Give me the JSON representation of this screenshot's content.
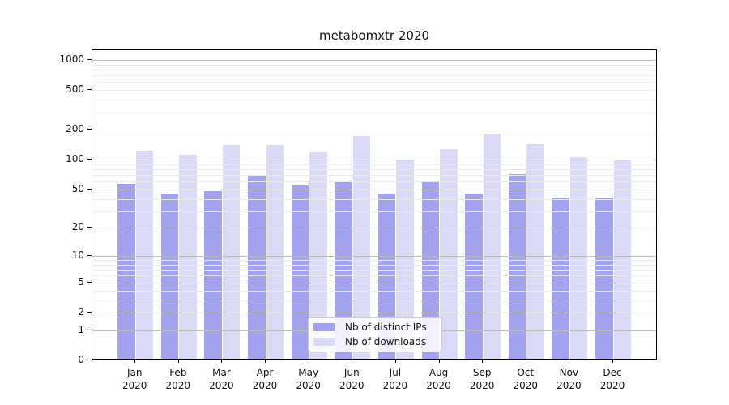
{
  "chart_data": {
    "type": "bar",
    "title": "metabomxtr 2020",
    "categories": [
      "Jan",
      "Feb",
      "Mar",
      "Apr",
      "May",
      "Jun",
      "Jul",
      "Aug",
      "Sep",
      "Oct",
      "Nov",
      "Dec"
    ],
    "category_year_line": "2020",
    "series": [
      {
        "name": "Nb of distinct IPs",
        "color": "#a2a2ef",
        "values": [
          55,
          43,
          46,
          66,
          53,
          59,
          44,
          57,
          44,
          69,
          40,
          40
        ]
      },
      {
        "name": "Nb of downloads",
        "color": "#dadaf7",
        "values": [
          119,
          109,
          135,
          135,
          115,
          165,
          94,
          123,
          175,
          139,
          103,
          94
        ]
      }
    ],
    "y_axis": {
      "tick_values": [
        0,
        1,
        2,
        5,
        10,
        20,
        50,
        100,
        200,
        500,
        1000
      ],
      "scale": "log10(value+1)",
      "top_value": 1250
    },
    "x_axis": {
      "tick_label_lines": 2
    },
    "legend": {
      "position": "bottom-center"
    },
    "grid": {
      "major_ticks": [
        1,
        10,
        100,
        1000
      ],
      "minor_subs_per_decade": [
        2,
        3,
        4,
        5,
        6,
        7,
        8,
        9
      ],
      "major_color": "#bcbcbc",
      "minor_color": "#eaeaea"
    },
    "colors": {
      "spine": "#000000",
      "background": "#ffffff"
    }
  }
}
